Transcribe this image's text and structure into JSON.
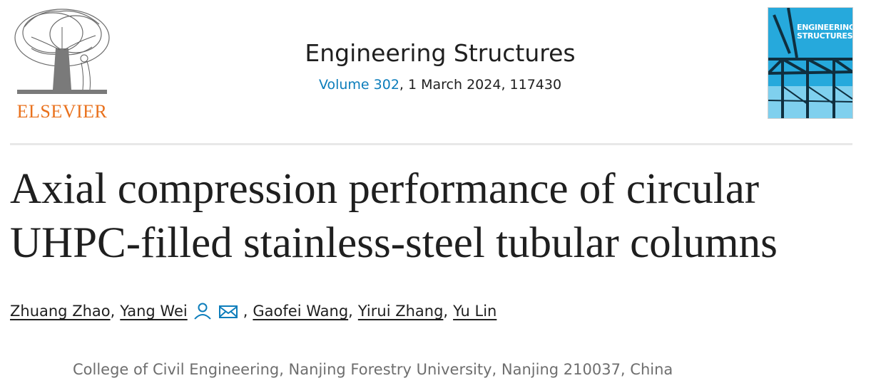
{
  "publisher": {
    "logo_text": "ELSEVIER"
  },
  "journal": {
    "title": "Engineering Structures",
    "volume_link": "Volume 302",
    "issue_rest": ", 1 March 2024, 117430",
    "cover_title": "Engineering Structures"
  },
  "article": {
    "title": "Axial compression performance of circular UHPC-filled stainless-steel tubular columns"
  },
  "authors": [
    {
      "name": "Zhuang Zhao",
      "sep": ","
    },
    {
      "name": "Yang Wei",
      "sep": ""
    },
    {
      "name": "Gaofei Wang",
      "sep": ",",
      "lead": ","
    },
    {
      "name": "Yirui Zhang",
      "sep": ","
    },
    {
      "name": "Yu Lin",
      "sep": ""
    }
  ],
  "affiliation": "College of Civil Engineering, Nanjing Forestry University, Nanjing 210037, China",
  "icons": [
    "person-icon",
    "envelope-icon"
  ],
  "colors": {
    "link": "#0c7dbb",
    "publisher_orange": "#e9711c",
    "cover_blue": "#21a4d6"
  }
}
